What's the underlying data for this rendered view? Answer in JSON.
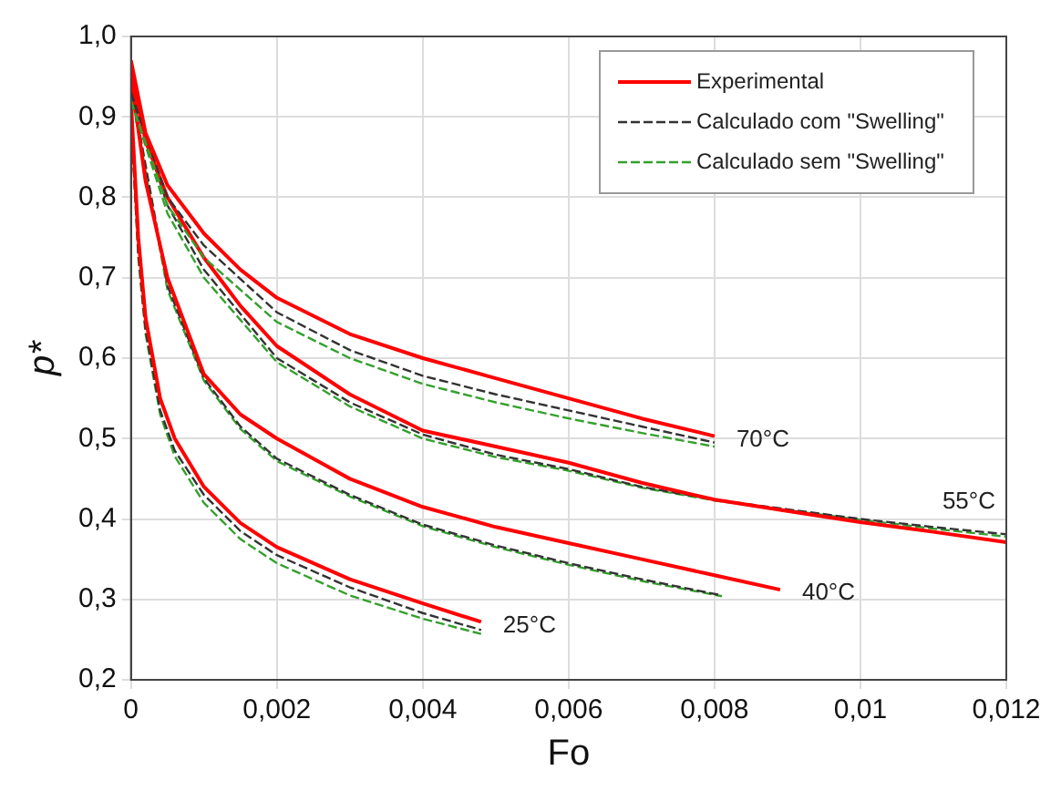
{
  "chart_data": {
    "type": "line",
    "xlabel": "Fo",
    "ylabel": "p*",
    "xlim": [
      0,
      0.012
    ],
    "ylim": [
      0.2,
      1.0
    ],
    "xticks": [
      0,
      {
        "value": 0.002,
        "label": "0,002"
      },
      {
        "value": 0.004,
        "label": "0,004"
      },
      {
        "value": 0.006,
        "label": "0,006"
      },
      {
        "value": 0.008,
        "label": "0,008"
      },
      {
        "value": 0.01,
        "label": "0,01"
      },
      {
        "value": 0.012,
        "label": "0,012"
      }
    ],
    "yticks": [
      {
        "value": 0.2,
        "label": "0,2"
      },
      {
        "value": 0.3,
        "label": "0,3"
      },
      {
        "value": 0.4,
        "label": "0,4"
      },
      {
        "value": 0.5,
        "label": "0,5"
      },
      {
        "value": 0.6,
        "label": "0,6"
      },
      {
        "value": 0.7,
        "label": "0,7"
      },
      {
        "value": 0.8,
        "label": "0,8"
      },
      {
        "value": 0.9,
        "label": "0,9"
      },
      {
        "value": 1.0,
        "label": "1,0"
      }
    ],
    "grid": true,
    "legend": "top right",
    "marker": "none",
    "series": [
      {
        "name": "Experimental",
        "color": "#ff0000",
        "line_style": "solid",
        "x": [
          0,
          0.0002,
          0.0005,
          0.001,
          0.0015,
          0.002,
          0.003,
          0.004,
          0.005,
          0.006,
          0.007,
          0.008
        ],
        "values": [
          0.97,
          0.88,
          0.815,
          0.755,
          0.71,
          0.675,
          0.63,
          0.6,
          0.575,
          0.55,
          0.525,
          0.503
        ]
      },
      {
        "name": "Calculado com \"Swelling\"",
        "color": "#333333",
        "line_style": "dashed",
        "x": [
          0,
          0.0005,
          0.001,
          0.002,
          0.003,
          0.004,
          0.005,
          0.006,
          0.007,
          0.008
        ],
        "values": [
          0.93,
          0.8,
          0.74,
          0.657,
          0.61,
          0.578,
          0.555,
          0.535,
          0.515,
          0.495
        ]
      },
      {
        "name": "Calculado sem \"Swelling\"",
        "color": "#33a02c",
        "line_style": "dashed",
        "x": [
          0,
          0.0005,
          0.001,
          0.002,
          0.003,
          0.004,
          0.005,
          0.006,
          0.007,
          0.008
        ],
        "values": [
          0.92,
          0.79,
          0.725,
          0.645,
          0.6,
          0.568,
          0.545,
          0.525,
          0.507,
          0.49
        ]
      },
      {
        "color": "#ff0000",
        "line_style": "solid",
        "x": [
          0,
          0.0002,
          0.0005,
          0.001,
          0.0015,
          0.002,
          0.003,
          0.004,
          0.005,
          0.006,
          0.007,
          0.008,
          0.009,
          0.01,
          0.011,
          0.012
        ],
        "values": [
          0.96,
          0.87,
          0.8,
          0.725,
          0.665,
          0.615,
          0.555,
          0.51,
          0.49,
          0.47,
          0.445,
          0.424,
          0.41,
          0.396,
          0.384,
          0.371
        ]
      },
      {
        "color": "#333333",
        "line_style": "dashed",
        "x": [
          0,
          0.0005,
          0.001,
          0.002,
          0.003,
          0.004,
          0.005,
          0.006,
          0.007,
          0.008,
          0.009,
          0.01,
          0.011,
          0.012
        ],
        "values": [
          0.93,
          0.79,
          0.71,
          0.6,
          0.545,
          0.505,
          0.48,
          0.462,
          0.44,
          0.424,
          0.412,
          0.4,
          0.39,
          0.381
        ]
      },
      {
        "color": "#33a02c",
        "line_style": "dashed",
        "x": [
          0,
          0.0005,
          0.001,
          0.002,
          0.003,
          0.004,
          0.005,
          0.006,
          0.007,
          0.008,
          0.009,
          0.01,
          0.011,
          0.012
        ],
        "values": [
          0.92,
          0.78,
          0.7,
          0.595,
          0.54,
          0.5,
          0.477,
          0.46,
          0.439,
          0.423,
          0.411,
          0.399,
          0.388,
          0.378
        ]
      },
      {
        "color": "#ff0000",
        "line_style": "solid",
        "x": [
          0,
          0.0002,
          0.0005,
          0.001,
          0.0015,
          0.002,
          0.003,
          0.004,
          0.005,
          0.006,
          0.007,
          0.008,
          0.0089
        ],
        "values": [
          0.95,
          0.82,
          0.7,
          0.58,
          0.53,
          0.5,
          0.45,
          0.415,
          0.39,
          0.37,
          0.35,
          0.33,
          0.312
        ]
      },
      {
        "color": "#333333",
        "line_style": "dashed",
        "x": [
          0,
          0.0005,
          0.001,
          0.0015,
          0.002,
          0.003,
          0.004,
          0.005,
          0.006,
          0.007,
          0.0081
        ],
        "values": [
          0.94,
          0.69,
          0.575,
          0.515,
          0.475,
          0.43,
          0.393,
          0.367,
          0.345,
          0.325,
          0.305
        ]
      },
      {
        "color": "#33a02c",
        "line_style": "dashed",
        "x": [
          0,
          0.0005,
          0.001,
          0.0015,
          0.002,
          0.003,
          0.004,
          0.005,
          0.006,
          0.007,
          0.0081
        ],
        "values": [
          0.93,
          0.685,
          0.572,
          0.512,
          0.472,
          0.428,
          0.391,
          0.365,
          0.343,
          0.323,
          0.304
        ]
      },
      {
        "color": "#ff0000",
        "line_style": "solid",
        "x": [
          0,
          0.0001,
          0.0002,
          0.0004,
          0.0006,
          0.001,
          0.0015,
          0.002,
          0.003,
          0.004,
          0.0048
        ],
        "values": [
          0.92,
          0.75,
          0.65,
          0.55,
          0.5,
          0.44,
          0.395,
          0.365,
          0.325,
          0.295,
          0.272
        ]
      },
      {
        "color": "#333333",
        "line_style": "dashed",
        "x": [
          0,
          0.0001,
          0.0002,
          0.0004,
          0.0006,
          0.001,
          0.0015,
          0.002,
          0.003,
          0.004,
          0.0048
        ],
        "values": [
          0.9,
          0.73,
          0.635,
          0.535,
          0.485,
          0.43,
          0.385,
          0.355,
          0.315,
          0.283,
          0.262
        ]
      },
      {
        "color": "#33a02c",
        "line_style": "dashed",
        "x": [
          0,
          0.0001,
          0.0002,
          0.0004,
          0.0006,
          0.001,
          0.0015,
          0.002,
          0.003,
          0.004,
          0.0048
        ],
        "values": [
          0.9,
          0.725,
          0.63,
          0.53,
          0.478,
          0.42,
          0.375,
          0.345,
          0.305,
          0.276,
          0.257
        ]
      }
    ],
    "annotations": [
      "70°C",
      "55°C",
      "40°C",
      "25°C"
    ]
  }
}
